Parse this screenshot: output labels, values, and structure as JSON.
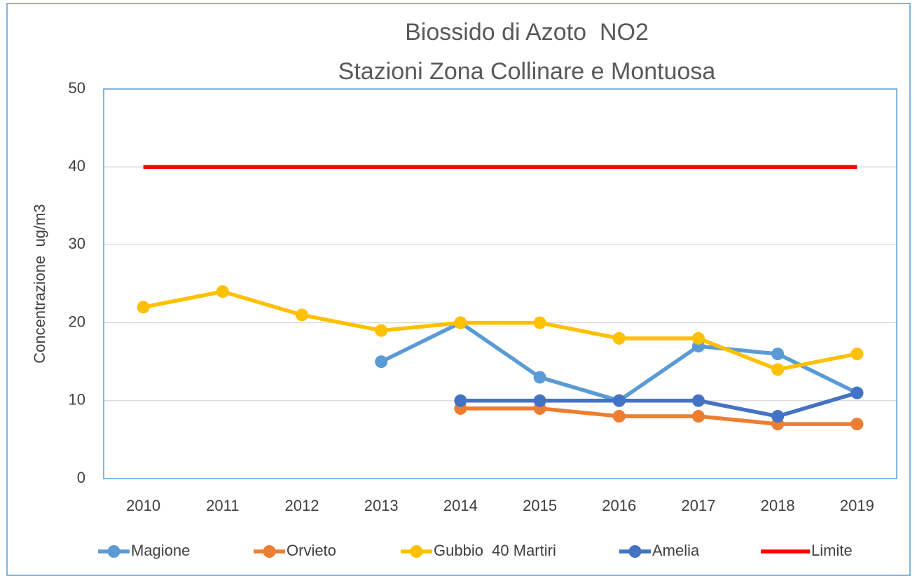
{
  "chart_data": {
    "type": "line",
    "title": [
      "Biossido di Azoto  NO2",
      "Stazioni Zona Collinare e Montuosa"
    ],
    "y_label": "Concentrazione  ug/m3",
    "categories": [
      "2010",
      "2011",
      "2012",
      "2013",
      "2014",
      "2015",
      "2016",
      "2017",
      "2018",
      "2019"
    ],
    "series": [
      {
        "name": "Magione",
        "color": "#5b9bd5",
        "markers": true,
        "values": [
          null,
          null,
          null,
          15,
          20,
          13,
          10,
          17,
          16,
          11
        ]
      },
      {
        "name": "Orvieto",
        "color": "#ed7d31",
        "markers": true,
        "values": [
          null,
          null,
          null,
          null,
          9,
          9,
          8,
          8,
          7,
          7
        ]
      },
      {
        "name": "Gubbio  40 Martiri",
        "color": "#ffc000",
        "markers": true,
        "values": [
          22,
          24,
          21,
          19,
          20,
          20,
          18,
          18,
          14,
          16
        ]
      },
      {
        "name": "Amelia",
        "color": "#4472c4",
        "markers": true,
        "values": [
          null,
          null,
          null,
          null,
          10,
          10,
          10,
          10,
          8,
          11
        ]
      },
      {
        "name": "Limite",
        "color": "#ff0000",
        "markers": false,
        "values": [
          40,
          40,
          40,
          40,
          40,
          40,
          40,
          40,
          40,
          40
        ]
      }
    ],
    "ylim": [
      0,
      50
    ],
    "yticks": [
      0,
      10,
      20,
      30,
      40,
      50
    ],
    "grid": true,
    "legend": "bottom"
  }
}
